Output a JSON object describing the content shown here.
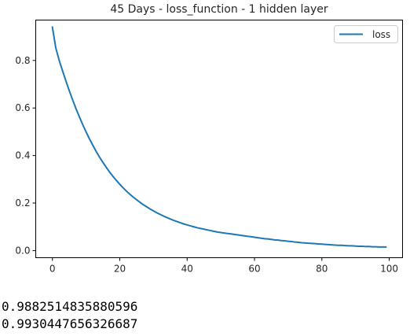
{
  "chart_data": {
    "type": "line",
    "title": "45 Days - loss_function - 1 hidden layer",
    "xlabel": "",
    "ylabel": "",
    "xlim": [
      -4.95,
      103.95
    ],
    "ylim": [
      -0.03,
      0.97
    ],
    "xticks": [
      0,
      20,
      40,
      60,
      80,
      100
    ],
    "yticks": [
      0.0,
      0.2,
      0.4,
      0.6,
      0.8
    ],
    "ytick_labels": [
      "0.0",
      "0.2",
      "0.4",
      "0.6",
      "0.8"
    ],
    "legend": {
      "placement": "top-right"
    },
    "grid": false,
    "series": [
      {
        "name": "loss",
        "color": "#1f77b4",
        "x": [
          0,
          1,
          2,
          3,
          4,
          5,
          6,
          7,
          8,
          9,
          10,
          11,
          12,
          13,
          14,
          15,
          16,
          17,
          18,
          19,
          20,
          21,
          22,
          23,
          24,
          25,
          26,
          27,
          28,
          29,
          30,
          31,
          32,
          33,
          34,
          35,
          36,
          37,
          38,
          39,
          40,
          41,
          42,
          43,
          44,
          45,
          46,
          47,
          48,
          49,
          50,
          51,
          52,
          53,
          54,
          55,
          56,
          57,
          58,
          59,
          60,
          61,
          62,
          63,
          64,
          65,
          66,
          67,
          68,
          69,
          70,
          71,
          72,
          73,
          74,
          75,
          76,
          77,
          78,
          79,
          80,
          81,
          82,
          83,
          84,
          85,
          86,
          87,
          88,
          89,
          90,
          91,
          92,
          93,
          94,
          95,
          96,
          97,
          98,
          99
        ],
        "values": [
          0.94,
          0.853,
          0.801,
          0.757,
          0.714,
          0.673,
          0.634,
          0.597,
          0.563,
          0.53,
          0.499,
          0.47,
          0.443,
          0.417,
          0.393,
          0.371,
          0.35,
          0.33,
          0.312,
          0.295,
          0.279,
          0.264,
          0.25,
          0.237,
          0.225,
          0.214,
          0.203,
          0.193,
          0.184,
          0.175,
          0.167,
          0.159,
          0.152,
          0.145,
          0.139,
          0.133,
          0.127,
          0.122,
          0.117,
          0.112,
          0.108,
          0.104,
          0.1,
          0.096,
          0.093,
          0.09,
          0.087,
          0.084,
          0.081,
          0.078,
          0.076,
          0.074,
          0.072,
          0.07,
          0.068,
          0.066,
          0.064,
          0.062,
          0.06,
          0.058,
          0.056,
          0.054,
          0.052,
          0.05,
          0.049,
          0.047,
          0.045,
          0.044,
          0.042,
          0.041,
          0.039,
          0.038,
          0.036,
          0.035,
          0.033,
          0.032,
          0.031,
          0.03,
          0.029,
          0.028,
          0.027,
          0.026,
          0.025,
          0.024,
          0.023,
          0.022,
          0.022,
          0.021,
          0.02,
          0.02,
          0.019,
          0.018,
          0.018,
          0.017,
          0.017,
          0.016,
          0.016,
          0.015,
          0.015,
          0.015
        ]
      }
    ]
  },
  "output": {
    "line1": "0.9882514835880596",
    "line2": "0.9930447656326687"
  }
}
